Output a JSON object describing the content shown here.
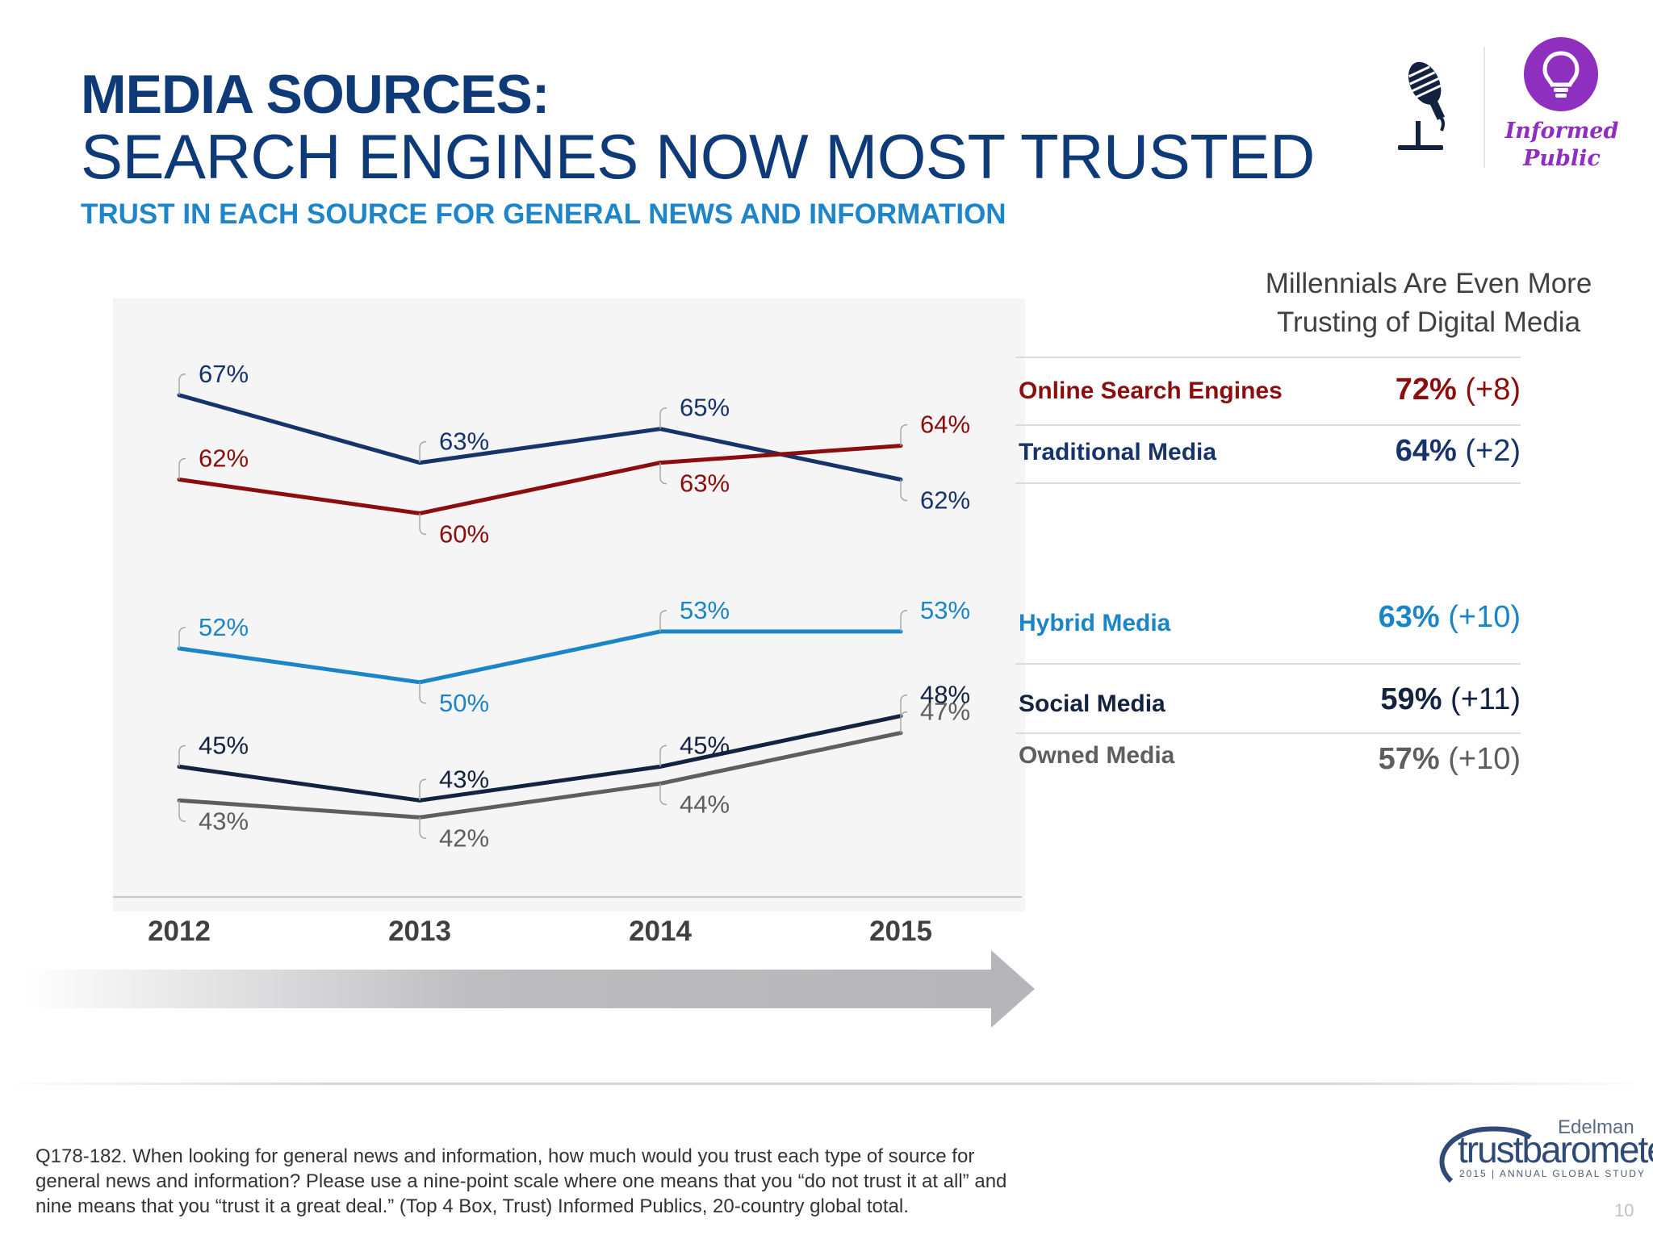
{
  "header": {
    "title_line1": "MEDIA SOURCES:",
    "title_line2": "SEARCH ENGINES NOW MOST TRUSTED",
    "subtitle": "TRUST IN EACH SOURCE FOR GENERAL NEWS AND INFORMATION"
  },
  "badge": {
    "line1": "Informed",
    "line2": "Public",
    "icon_left": "microphone-icon",
    "icon_right": "lightbulb-icon",
    "color": "#8e2fbf"
  },
  "chart_data": {
    "type": "line",
    "x": [
      "2012",
      "2013",
      "2014",
      "2015"
    ],
    "ylim": [
      38,
      70
    ],
    "grid": false,
    "series": [
      {
        "key": "traditional",
        "color": "#17336b",
        "values": [
          67,
          63,
          65,
          62
        ],
        "labels": [
          "67%",
          "63%",
          "65%",
          "62%"
        ]
      },
      {
        "key": "search",
        "color": "#8b0e0e",
        "values": [
          62,
          60,
          63,
          64
        ],
        "labels": [
          "62%",
          "60%",
          "63%",
          "64%"
        ]
      },
      {
        "key": "hybrid",
        "color": "#1a86c7",
        "values": [
          52,
          50,
          53,
          53
        ],
        "labels": [
          "52%",
          "50%",
          "53%",
          "53%"
        ]
      },
      {
        "key": "social",
        "color": "#13233f",
        "values": [
          45,
          43,
          45,
          48
        ],
        "labels": [
          "45%",
          "43%",
          "45%",
          "48%"
        ]
      },
      {
        "key": "owned",
        "color": "#5e5e5e",
        "values": [
          43,
          42,
          44,
          47
        ],
        "labels": [
          "43%",
          "42%",
          "44%",
          "47%"
        ]
      }
    ]
  },
  "sidebar": {
    "heading_line1": "Millennials Are Even More",
    "heading_line2": "Trusting of Digital Media",
    "rows": [
      {
        "label": "Online Search Engines",
        "pct": "72%",
        "change": "(+8)",
        "color": "#8b0e0e"
      },
      {
        "label": "Traditional Media",
        "pct": "64%",
        "change": "(+2)",
        "color": "#17336b"
      },
      {
        "label": "Hybrid Media",
        "pct": "63%",
        "change": "(+10)",
        "color": "#1a86c7"
      },
      {
        "label": "Social Media",
        "pct": "59%",
        "change": "(+11)",
        "color": "#13233f"
      },
      {
        "label": "Owned Media",
        "pct": "57%",
        "change": "(+10)",
        "color": "#5e5e5e"
      }
    ]
  },
  "footer": {
    "note_line1": "Q178-182. When looking for general news and information, how much would you trust each type of source for",
    "note_line2": "general news and information? Please use a nine-point scale where one means that you “do not trust it at all” and",
    "note_line3": "nine means that you “trust it a great deal.” (Top 4 Box, Trust) Informed Publics, 20-country global total.",
    "brand_top": "Edelman",
    "brand_thin": "trust",
    "brand_bold": "barometer",
    "brand_sub": "2015 | ANNUAL GLOBAL STUDY",
    "page_number": "10"
  }
}
